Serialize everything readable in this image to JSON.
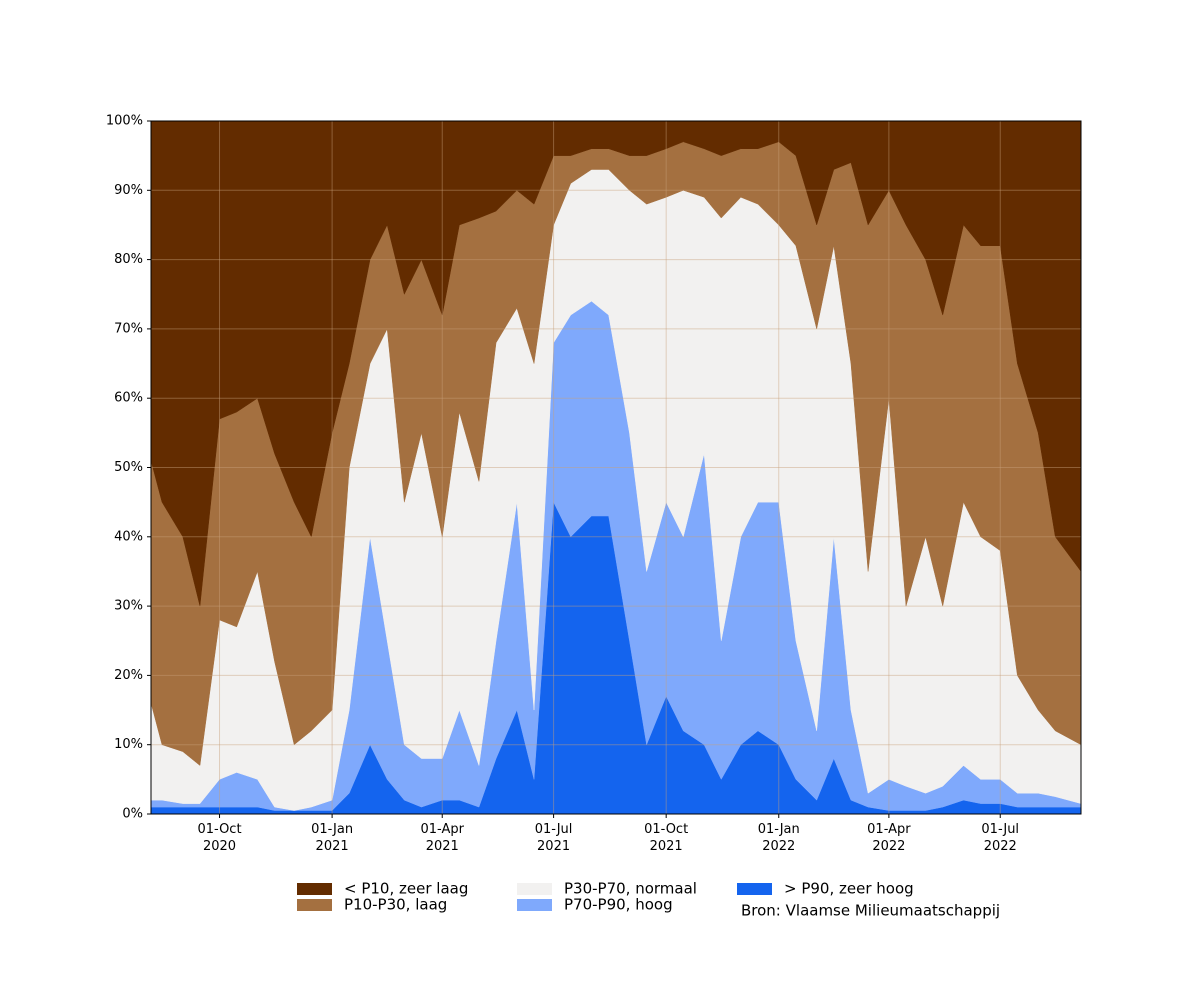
{
  "chart_data": {
    "type": "stacked_area",
    "source": "Bron: Vlaamse Milieumaatschappij",
    "x": [
      "2020-08-06",
      "2020-08-15",
      "2020-09-01",
      "2020-09-15",
      "2020-10-01",
      "2020-10-15",
      "2020-11-01",
      "2020-11-15",
      "2020-12-01",
      "2020-12-15",
      "2021-01-01",
      "2021-01-15",
      "2021-02-01",
      "2021-02-15",
      "2021-03-01",
      "2021-03-15",
      "2021-04-01",
      "2021-04-15",
      "2021-05-01",
      "2021-05-15",
      "2021-06-01",
      "2021-06-15",
      "2021-07-01",
      "2021-07-15",
      "2021-08-01",
      "2021-08-15",
      "2021-09-01",
      "2021-09-15",
      "2021-10-01",
      "2021-10-15",
      "2021-11-01",
      "2021-11-15",
      "2021-12-01",
      "2021-12-15",
      "2022-01-01",
      "2022-01-15",
      "2022-02-01",
      "2022-02-15",
      "2022-03-01",
      "2022-03-15",
      "2022-04-01",
      "2022-04-15",
      "2022-05-01",
      "2022-05-15",
      "2022-06-01",
      "2022-06-15",
      "2022-07-01",
      "2022-07-15",
      "2022-08-01",
      "2022-08-15",
      "2022-09-05"
    ],
    "series": [
      {
        "name": "> P90, zeer hoog",
        "color": "#1464ee",
        "values": [
          1,
          1,
          1,
          1,
          1,
          1,
          1,
          0.5,
          0.5,
          0.5,
          0.5,
          3,
          10,
          5,
          2,
          1,
          2,
          2,
          1,
          8,
          15,
          5,
          45,
          40,
          43,
          43,
          25,
          10,
          17,
          12,
          10,
          5,
          10,
          12,
          10,
          5,
          2,
          8,
          2,
          1,
          0.5,
          0.5,
          0.5,
          1,
          2,
          1.5,
          1.5,
          1,
          1,
          1,
          1
        ]
      },
      {
        "name": "P70-P90, hoog",
        "color": "#7fa9fc",
        "values": [
          1,
          1,
          0.5,
          0.5,
          4,
          5,
          4,
          0.5,
          0,
          0.5,
          1.5,
          12,
          30,
          20,
          8,
          7,
          6,
          13,
          6,
          17,
          30,
          10,
          23,
          32,
          31,
          29,
          30,
          25,
          28,
          28,
          42,
          20,
          30,
          33,
          35,
          20,
          10,
          32,
          13,
          2,
          4.5,
          3.5,
          2.5,
          3,
          5,
          3.5,
          3.5,
          2,
          2,
          1.5,
          0.5
        ]
      },
      {
        "name": "P30-P70, normaal",
        "color": "#f2f1f0",
        "values": [
          14,
          8,
          7.5,
          5.5,
          23,
          21,
          30,
          21,
          9.5,
          11,
          13,
          35,
          25,
          45,
          35,
          47,
          32,
          43,
          41,
          43,
          28,
          50,
          17,
          19,
          19,
          21,
          35,
          53,
          44,
          50,
          37,
          61,
          49,
          43,
          40,
          57,
          58,
          42,
          50,
          32,
          55,
          26,
          37,
          26,
          38,
          35,
          33,
          17,
          12,
          9.5,
          8.5
        ]
      },
      {
        "name": "P10-P30, laag",
        "color": "#a47040",
        "values": [
          35,
          35,
          31,
          23,
          29,
          31,
          25,
          30,
          35,
          28,
          40,
          15,
          15,
          15,
          30,
          25,
          32,
          27,
          38,
          19,
          17,
          23,
          10,
          4,
          3,
          3,
          5,
          7,
          7,
          7,
          7,
          9,
          7,
          8,
          12,
          13,
          15,
          11,
          29,
          50,
          30,
          55,
          40,
          42,
          40,
          42,
          44,
          45,
          40,
          28,
          25
        ]
      },
      {
        "name": "< P10, zeer laag",
        "color": "#632c00",
        "values": [
          49,
          55,
          60,
          70,
          43,
          42,
          40,
          48,
          55,
          60,
          45,
          35,
          20,
          15,
          25,
          20,
          28,
          15,
          14,
          13,
          10,
          12,
          5,
          5,
          4,
          4,
          5,
          5,
          4,
          3,
          4,
          5,
          4,
          4,
          3,
          5,
          15,
          7,
          6,
          15,
          10,
          15,
          20,
          28,
          15,
          18,
          18,
          35,
          45,
          60,
          65
        ]
      }
    ],
    "xlim": [
      "2020-08-06",
      "2022-09-05"
    ],
    "xticks": [
      {
        "value": "2020-10-01",
        "label": "01-Oct\n2020"
      },
      {
        "value": "2021-01-01",
        "label": "01-Jan\n2021"
      },
      {
        "value": "2021-04-01",
        "label": "01-Apr\n2021"
      },
      {
        "value": "2021-07-01",
        "label": "01-Jul\n2021"
      },
      {
        "value": "2021-10-01",
        "label": "01-Oct\n2021"
      },
      {
        "value": "2022-01-01",
        "label": "01-Jan\n2022"
      },
      {
        "value": "2022-04-01",
        "label": "01-Apr\n2022"
      },
      {
        "value": "2022-07-01",
        "label": "01-Jul\n2022"
      }
    ],
    "ylim": [
      0,
      100
    ],
    "yticks": [
      {
        "value": 0,
        "label": "0%"
      },
      {
        "value": 10,
        "label": "10%"
      },
      {
        "value": 20,
        "label": "20%"
      },
      {
        "value": 30,
        "label": "30%"
      },
      {
        "value": 40,
        "label": "40%"
      },
      {
        "value": 50,
        "label": "50%"
      },
      {
        "value": 60,
        "label": "60%"
      },
      {
        "value": 70,
        "label": "70%"
      },
      {
        "value": 80,
        "label": "80%"
      },
      {
        "value": 90,
        "label": "90%"
      },
      {
        "value": 100,
        "label": "100%"
      }
    ],
    "grid": true
  }
}
